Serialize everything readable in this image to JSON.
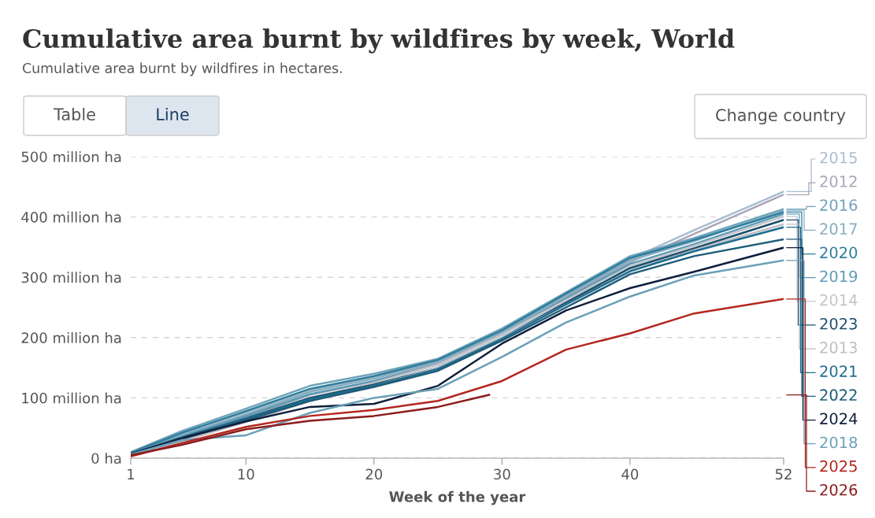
{
  "chart_data": {
    "type": "line",
    "title": "Cumulative area burnt by wildfires by week, World",
    "subtitle": "Cumulative area burnt by wildfires in hectares.",
    "annotations": [
      "Table",
      "Line",
      "Change country"
    ],
    "xlabel": "Week of the year",
    "x": [
      1,
      5,
      10,
      15,
      20,
      25,
      30,
      35,
      40,
      45,
      52
    ],
    "xlim": [
      1,
      52
    ],
    "xticks": [
      1,
      10,
      20,
      30,
      40,
      52
    ],
    "ylim": [
      0,
      500
    ],
    "yticks": [
      {
        "value": 0,
        "label": "0 ha"
      },
      {
        "value": 100,
        "label": "100 million ha"
      },
      {
        "value": 200,
        "label": "200 million ha"
      },
      {
        "value": 300,
        "label": "300 million ha"
      },
      {
        "value": 400,
        "label": "400 million ha"
      },
      {
        "value": 500,
        "label": "500 million ha"
      }
    ],
    "grid": "y",
    "legend": "right",
    "series": [
      {
        "name": "2015",
        "color": "#a9bcd0",
        "values": [
          8,
          40,
          75,
          112,
          135,
          162,
          210,
          272,
          330,
          378,
          442
        ]
      },
      {
        "name": "2012",
        "color": "#a9a5b8",
        "values": [
          7,
          35,
          68,
          105,
          128,
          158,
          205,
          268,
          325,
          372,
          437
        ]
      },
      {
        "name": "2016",
        "color": "#6fa3bb",
        "values": [
          10,
          45,
          82,
          120,
          140,
          165,
          215,
          275,
          335,
          365,
          413
        ]
      },
      {
        "name": "2017",
        "color": "#86aec0",
        "values": [
          8,
          38,
          72,
          110,
          132,
          160,
          208,
          270,
          328,
          360,
          411
        ]
      },
      {
        "name": "2020",
        "color": "#2e7d9c",
        "values": [
          9,
          42,
          78,
          115,
          136,
          163,
          212,
          273,
          332,
          362,
          408
        ]
      },
      {
        "name": "2019",
        "color": "#5b9ab5",
        "values": [
          8,
          36,
          70,
          106,
          128,
          155,
          205,
          265,
          322,
          355,
          405
        ]
      },
      {
        "name": "2014",
        "color": "#c4c4cc",
        "values": [
          6,
          30,
          62,
          100,
          125,
          155,
          205,
          262,
          318,
          352,
          401
        ]
      },
      {
        "name": "2023",
        "color": "#1b4f6b",
        "values": [
          7,
          34,
          66,
          100,
          122,
          150,
          200,
          258,
          315,
          348,
          395
        ]
      },
      {
        "name": "2013",
        "color": "#bdbdc5",
        "values": [
          5,
          28,
          60,
          95,
          120,
          150,
          200,
          255,
          310,
          345,
          388
        ]
      },
      {
        "name": "2021",
        "color": "#1f6d8f",
        "values": [
          7,
          33,
          65,
          98,
          120,
          148,
          198,
          255,
          310,
          343,
          383
        ]
      },
      {
        "name": "2022",
        "color": "#1e5c78",
        "values": [
          6,
          32,
          63,
          95,
          118,
          145,
          195,
          250,
          305,
          335,
          363
        ]
      },
      {
        "name": "2024",
        "color": "#0f1f3d",
        "values": [
          7,
          33,
          61,
          85,
          90,
          120,
          190,
          245,
          282,
          309,
          349
        ]
      },
      {
        "name": "2018",
        "color": "#6aa0b8",
        "values": [
          6,
          30,
          38,
          75,
          100,
          115,
          168,
          225,
          268,
          303,
          328
        ]
      },
      {
        "name": "2025",
        "color": "#b3261e",
        "values": [
          3,
          25,
          52,
          70,
          80,
          95,
          128,
          180,
          207,
          240,
          264
        ]
      },
      {
        "name": "2026",
        "color": "#8a1c1c",
        "x": [
          1,
          5,
          10,
          15,
          20,
          25,
          29
        ],
        "values": [
          5,
          22,
          48,
          62,
          70,
          85,
          105
        ]
      }
    ]
  }
}
